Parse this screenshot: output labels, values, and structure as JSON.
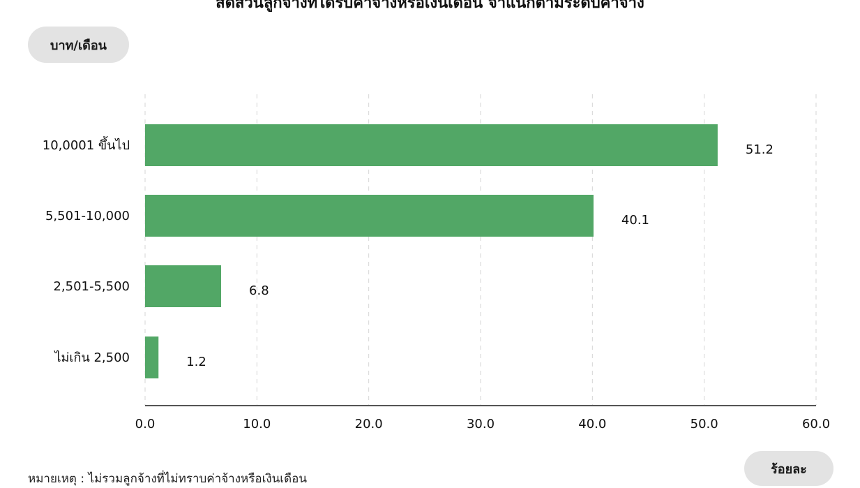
{
  "header": {
    "title_fragment": "สัดส่วนลูกจ้างที่ได้รับค่าจ้างหรือเงินเดือน จำแนกตามระดับค่าจ้าง"
  },
  "units": {
    "y_unit": "บาท/เดือน",
    "x_unit": "ร้อยละ"
  },
  "footnote": "หมายเหตุ : ไม่รวมลูกจ้างที่ไม่ทราบค่าจ้างหรือเงินเดือน",
  "colors": {
    "bar": "#52a766",
    "grid": "#d6d6d6",
    "axis": "#555555",
    "pill": "#e3e3e3"
  },
  "chart_data": {
    "type": "bar",
    "orientation": "horizontal",
    "categories": [
      "10,0001 ขึ้นไป",
      "5,501-10,000",
      "2,501-5,500",
      "ไม่เกิน 2,500"
    ],
    "values": [
      51.2,
      40.1,
      6.8,
      1.2
    ],
    "value_labels": [
      "51.2",
      "40.1",
      "6.8",
      "1.2"
    ],
    "xlim": [
      0,
      60
    ],
    "xticks": [
      0,
      10,
      20,
      30,
      40,
      50,
      60
    ],
    "xtick_labels": [
      "0.0",
      "10.0",
      "20.0",
      "30.0",
      "40.0",
      "50.0",
      "60.0"
    ],
    "xlabel": "ร้อยละ",
    "ylabel": "บาท/เดือน",
    "grid": "vertical dashed",
    "legend": "none"
  }
}
